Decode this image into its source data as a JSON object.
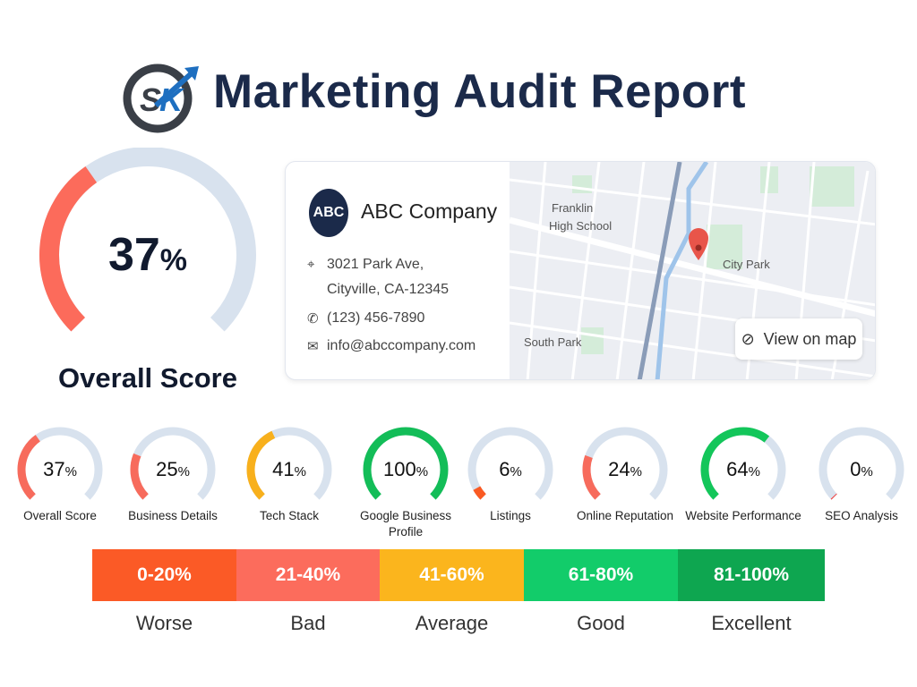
{
  "header": {
    "title": "Marketing Audit Report",
    "logo_text": "SK"
  },
  "overall": {
    "value": 37,
    "unit": "%",
    "label": "Overall Score"
  },
  "business": {
    "avatar": "ABC",
    "name": "ABC Company",
    "address_line1": "3021 Park Ave,",
    "address_line2": "Cityville, CA-12345",
    "phone": "(123) 456-7890",
    "email": "info@abccompany.com"
  },
  "map": {
    "labels": [
      "Franklin",
      "High School",
      "City Park",
      "South Park"
    ],
    "view_button": "View on map"
  },
  "gauges": [
    {
      "label": "Overall Score",
      "value": 37,
      "color": "#f76b5c"
    },
    {
      "label": "Business Details",
      "value": 25,
      "color": "#f76b5c"
    },
    {
      "label": "Tech Stack",
      "value": 41,
      "color": "#f8b01c"
    },
    {
      "label": "Google Business Profile",
      "value": 100,
      "color": "#13bd58"
    },
    {
      "label": "Listings",
      "value": 6,
      "color": "#fa5a23"
    },
    {
      "label": "Online Reputation",
      "value": 24,
      "color": "#f76b5c"
    },
    {
      "label": "Website Performance",
      "value": 64,
      "color": "#13c65a"
    },
    {
      "label": "SEO Analysis",
      "value": 0,
      "color": "#f04040"
    }
  ],
  "scale": [
    {
      "range": "0-20%",
      "label": "Worse",
      "color": "#fb5a26"
    },
    {
      "range": "21-40%",
      "label": "Bad",
      "color": "#fc6c5c"
    },
    {
      "range": "41-60%",
      "label": "Average",
      "color": "#fbb51d"
    },
    {
      "range": "61-80%",
      "label": "Good",
      "color": "#12cc6a"
    },
    {
      "range": "81-100%",
      "label": "Excellent",
      "color": "#0ea650"
    }
  ],
  "colors": {
    "track": "#d8e2ee",
    "overall": "#fc6b5b",
    "navy": "#1b2a4a"
  }
}
